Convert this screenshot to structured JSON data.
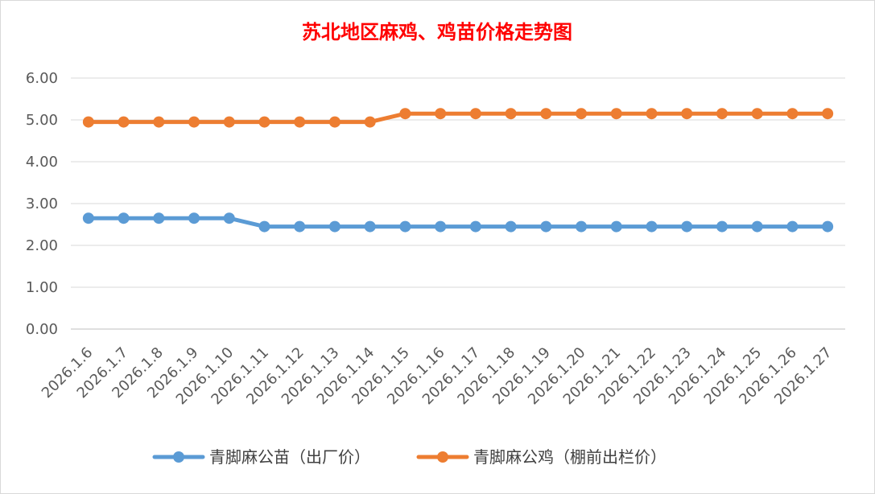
{
  "chart_data": {
    "type": "line",
    "title": "苏北地区麻鸡、鸡苗价格走势图",
    "xlabel": "",
    "ylabel": "",
    "categories": [
      "2026.1.6",
      "2026.1.7",
      "2026.1.8",
      "2026.1.9",
      "2026.1.10",
      "2026.1.11",
      "2026.1.12",
      "2026.1.13",
      "2026.1.14",
      "2026.1.15",
      "2026.1.16",
      "2026.1.17",
      "2026.1.18",
      "2026.1.19",
      "2026.1.20",
      "2026.1.21",
      "2026.1.22",
      "2026.1.23",
      "2026.1.24",
      "2026.1.25",
      "2026.1.26",
      "2026.1.27"
    ],
    "y_ticks": [
      "0.00",
      "1.00",
      "2.00",
      "3.00",
      "4.00",
      "5.00",
      "6.00"
    ],
    "ylim": [
      0,
      6
    ],
    "grid": true,
    "legend_position": "bottom",
    "series": [
      {
        "name": "青脚麻公苗（出厂价）",
        "color": "#5B9BD5",
        "values": [
          2.65,
          2.65,
          2.65,
          2.65,
          2.65,
          2.45,
          2.45,
          2.45,
          2.45,
          2.45,
          2.45,
          2.45,
          2.45,
          2.45,
          2.45,
          2.45,
          2.45,
          2.45,
          2.45,
          2.45,
          2.45,
          2.45
        ]
      },
      {
        "name": "青脚麻公鸡（棚前出栏价）",
        "color": "#ED7D31",
        "values": [
          4.95,
          4.95,
          4.95,
          4.95,
          4.95,
          4.95,
          4.95,
          4.95,
          4.95,
          5.15,
          5.15,
          5.15,
          5.15,
          5.15,
          5.15,
          5.15,
          5.15,
          5.15,
          5.15,
          5.15,
          5.15,
          5.15
        ]
      }
    ],
    "title_color": "#FF0000",
    "grid_color": "#D9D9D9",
    "axis_color": "#BFBFBF"
  }
}
